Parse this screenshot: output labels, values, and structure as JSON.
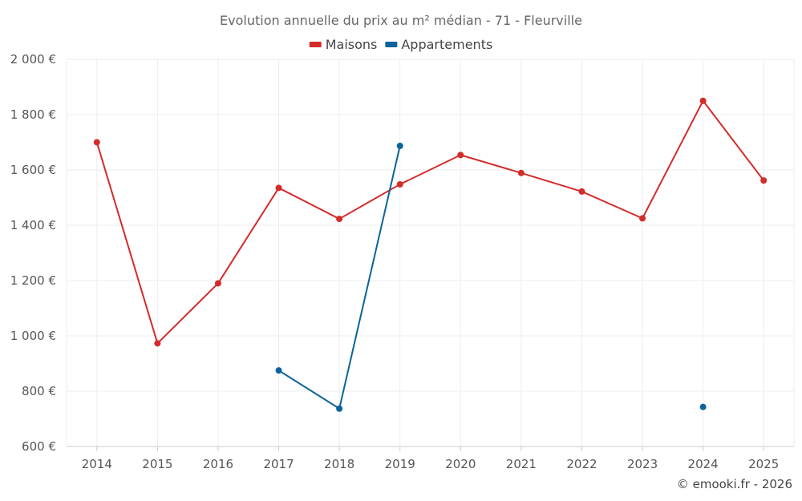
{
  "chart_data": {
    "type": "line",
    "title": "Evolution annuelle du prix au m² médian - 71 - Fleurville",
    "categories": [
      "2014",
      "2015",
      "2016",
      "2017",
      "2018",
      "2019",
      "2020",
      "2021",
      "2022",
      "2023",
      "2024",
      "2025"
    ],
    "y_ticks": [
      "600 €",
      "800 €",
      "1 000 €",
      "1 200 €",
      "1 400 €",
      "1 600 €",
      "1 800 €",
      "2 000 €"
    ],
    "ylim": [
      600,
      2000
    ],
    "grid": true,
    "legend_position": "top-center",
    "series": [
      {
        "name": "Maisons",
        "color": "#d42b2b",
        "values": [
          1700,
          973,
          1190,
          1535,
          1423,
          1548,
          1654,
          1589,
          1522,
          1425,
          1850,
          1562
        ]
      },
      {
        "name": "Appartements",
        "color": "#0b6399",
        "values": [
          null,
          null,
          null,
          875,
          737,
          1687,
          null,
          null,
          null,
          null,
          743,
          null
        ]
      }
    ]
  },
  "credit": "© emooki.fr - 2026"
}
